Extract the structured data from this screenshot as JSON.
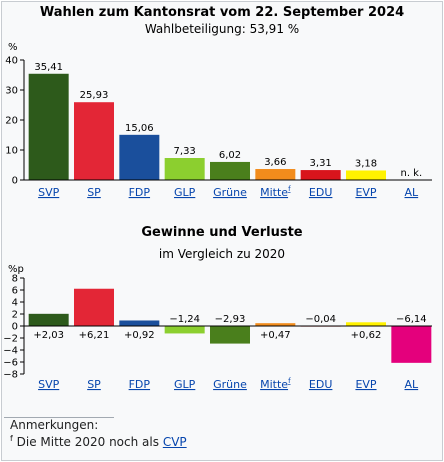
{
  "chart_data": [
    {
      "type": "bar",
      "title": "Wahlen zum Kantonsrat vom 22. September 2024",
      "subtitle": "Wahlbeteiligung: 53,91 %",
      "ylabel": "%",
      "ylim": [
        0,
        40
      ],
      "yticks": [
        0,
        10,
        20,
        30,
        40
      ],
      "grid": false,
      "categories": [
        "SVP",
        "SP",
        "FDP",
        "GLP",
        "Grüne",
        "Mitte",
        "EDU",
        "EVP",
        "AL"
      ],
      "values": [
        35.41,
        25.93,
        15.06,
        7.33,
        6.02,
        3.66,
        3.31,
        3.18,
        null
      ],
      "labels": [
        "35,41",
        "25,93",
        "15,06",
        "7,33",
        "6,02",
        "3,66",
        "3,31",
        "3,18",
        "n. k."
      ],
      "colors": [
        "#2d5a1b",
        "#e32636",
        "#1a4f9c",
        "#8ccf2f",
        "#4a7f1c",
        "#f28c1c",
        "#d8141c",
        "#fff200",
        "#e4007c"
      ]
    },
    {
      "type": "bar",
      "title": "Gewinne und Verluste",
      "subtitle": "im Vergleich zu 2020",
      "ylabel": "%p",
      "ylim": [
        -8,
        8
      ],
      "yticks": [
        -8,
        -6,
        -4,
        -2,
        0,
        2,
        4,
        6,
        8
      ],
      "grid": false,
      "categories": [
        "SVP",
        "SP",
        "FDP",
        "GLP",
        "Grüne",
        "Mitte",
        "EDU",
        "EVP",
        "AL"
      ],
      "values": [
        2.03,
        6.21,
        0.92,
        -1.24,
        -2.93,
        0.47,
        -0.04,
        0.62,
        -6.14
      ],
      "labels": [
        "+2,03",
        "+6,21",
        "+0,92",
        "−1,24",
        "−2,93",
        "+0,47",
        "−0,04",
        "+0,62",
        "−6,14"
      ],
      "colors": [
        "#2d5a1b",
        "#e32636",
        "#1a4f9c",
        "#8ccf2f",
        "#4a7f1c",
        "#f28c1c",
        "#d8141c",
        "#fff200",
        "#e4007c"
      ]
    }
  ],
  "footnote_marker": "f",
  "notes": {
    "heading": "Anmerkungen:",
    "marker": "f",
    "text": "Die Mitte 2020 noch als",
    "link": "CVP"
  }
}
